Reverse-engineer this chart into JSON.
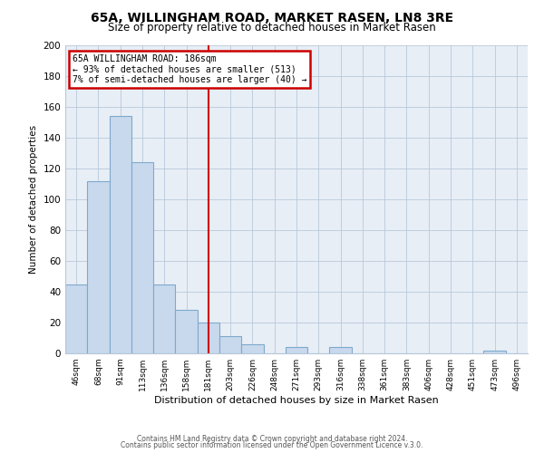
{
  "title": "65A, WILLINGHAM ROAD, MARKET RASEN, LN8 3RE",
  "subtitle": "Size of property relative to detached houses in Market Rasen",
  "xlabel": "Distribution of detached houses by size in Market Rasen",
  "ylabel": "Number of detached properties",
  "bar_labels": [
    "46sqm",
    "68sqm",
    "91sqm",
    "113sqm",
    "136sqm",
    "158sqm",
    "181sqm",
    "203sqm",
    "226sqm",
    "248sqm",
    "271sqm",
    "293sqm",
    "316sqm",
    "338sqm",
    "361sqm",
    "383sqm",
    "406sqm",
    "428sqm",
    "451sqm",
    "473sqm",
    "496sqm"
  ],
  "bar_values": [
    45,
    112,
    154,
    124,
    45,
    28,
    20,
    11,
    6,
    0,
    4,
    0,
    4,
    0,
    0,
    0,
    0,
    0,
    0,
    2,
    0
  ],
  "bar_color": "#c8d9ed",
  "bar_edge_color": "#7fa8cc",
  "vline_x": 6,
  "vline_color": "#cc0000",
  "annotation_title": "65A WILLINGHAM ROAD: 186sqm",
  "annotation_line1": "← 93% of detached houses are smaller (513)",
  "annotation_line2": "7% of semi-detached houses are larger (40) →",
  "annotation_box_color": "#cc0000",
  "annotation_text_color": "#000000",
  "annotation_bg_color": "#ffffff",
  "ylim": [
    0,
    200
  ],
  "yticks": [
    0,
    20,
    40,
    60,
    80,
    100,
    120,
    140,
    160,
    180,
    200
  ],
  "footer1": "Contains HM Land Registry data © Crown copyright and database right 2024.",
  "footer2": "Contains public sector information licensed under the Open Government Licence v.3.0.",
  "bg_color": "#ffffff",
  "plot_bg_color": "#e8eef6",
  "grid_color": "#b8c8da"
}
